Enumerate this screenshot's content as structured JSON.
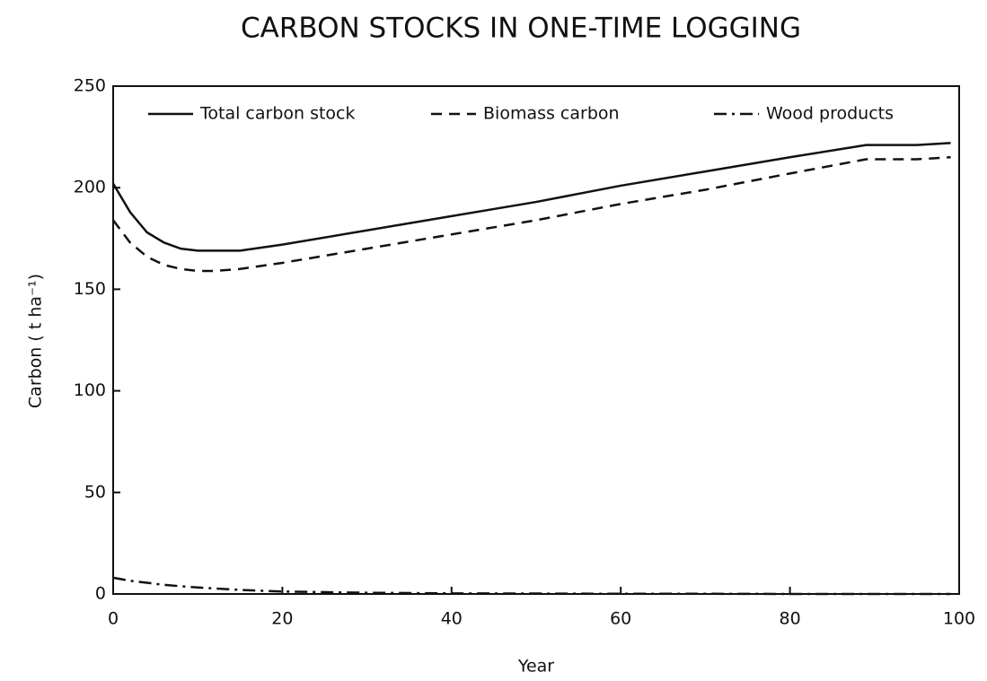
{
  "chart_data": {
    "type": "line",
    "title": "CARBON STOCKS IN ONE-TIME LOGGING",
    "x_label": "Year",
    "y_label": "Carbon ( t ha⁻¹)",
    "x": [
      0,
      2,
      4,
      6,
      8,
      10,
      12,
      15,
      20,
      30,
      40,
      50,
      60,
      70,
      80,
      89,
      95,
      99
    ],
    "series": [
      {
        "name": "Total carbon stock",
        "color": "#111111",
        "linestyle": "solid",
        "values": [
          202,
          188,
          178,
          173,
          170,
          169,
          169,
          169,
          172,
          179,
          186,
          193,
          201,
          208,
          215,
          221,
          221,
          222
        ]
      },
      {
        "name": "Biomass carbon",
        "color": "#111111",
        "linestyle": "dashed",
        "values": [
          184,
          173,
          166,
          162,
          160,
          159,
          159,
          160,
          163,
          170,
          177,
          184,
          192,
          199,
          207,
          214,
          214,
          215
        ]
      },
      {
        "name": "Wood products",
        "color": "#111111",
        "linestyle": "dashdot",
        "values": [
          8,
          6.5,
          5.5,
          4.5,
          3.8,
          3.2,
          2.7,
          2,
          1.2,
          0.6,
          0.3,
          0.2,
          0.1,
          0.1,
          0,
          0,
          0,
          0
        ]
      }
    ],
    "xlim": [
      0,
      100
    ],
    "xticks": [
      0,
      20,
      40,
      60,
      80,
      100
    ],
    "ylim": [
      0,
      250
    ],
    "yticks": [
      0,
      50,
      100,
      150,
      200,
      250
    ],
    "grid": false,
    "legend": "top"
  }
}
